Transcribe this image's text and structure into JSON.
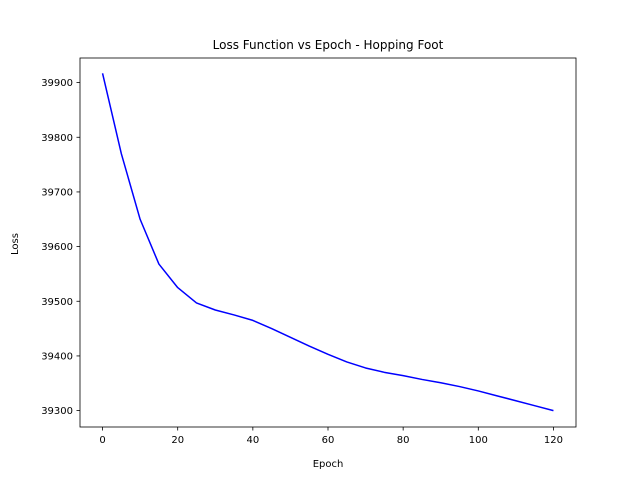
{
  "chart_data": {
    "type": "line",
    "title": "Loss Function vs Epoch - Hopping Foot",
    "xlabel": "Epoch",
    "ylabel": "Loss",
    "xlim": [
      -6,
      126
    ],
    "ylim": [
      39270,
      39945
    ],
    "xticks": [
      0,
      20,
      40,
      60,
      80,
      100,
      120
    ],
    "yticks": [
      39300,
      39400,
      39500,
      39600,
      39700,
      39800,
      39900
    ],
    "grid": false,
    "series": [
      {
        "color": "#0000ff",
        "x": [
          0,
          5,
          10,
          15,
          20,
          25,
          30,
          35,
          40,
          45,
          50,
          55,
          60,
          65,
          70,
          75,
          80,
          85,
          90,
          95,
          100,
          105,
          110,
          115,
          120
        ],
        "y": [
          39917,
          39770,
          39650,
          39568,
          39525,
          39497,
          39484,
          39475,
          39465,
          39450,
          39434,
          39418,
          39403,
          39389,
          39378,
          39370,
          39364,
          39357,
          39351,
          39344,
          39336,
          39327,
          39318,
          39309,
          39300
        ]
      }
    ]
  }
}
